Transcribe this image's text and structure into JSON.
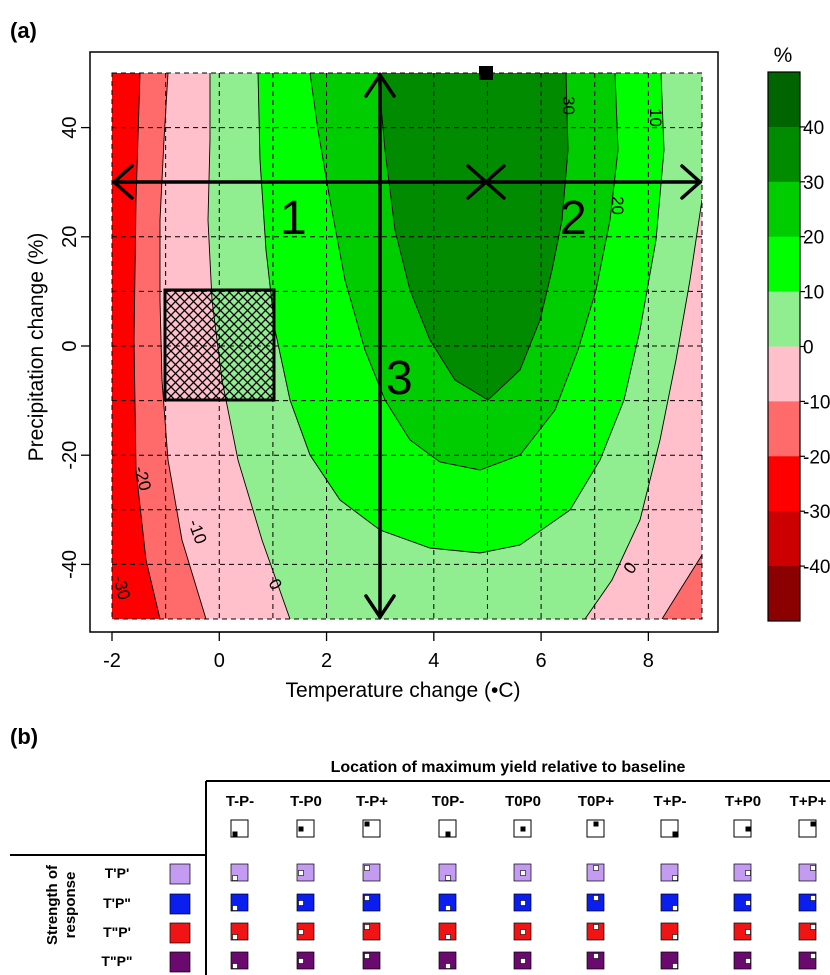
{
  "panel_a": {
    "label": "(a)",
    "xlabel": "Temperature change (•C)",
    "ylabel": "Precipitation change (%)",
    "x_ticks": [
      "-2",
      "0",
      "2",
      "4",
      "6",
      "8"
    ],
    "y_ticks": [
      "-40",
      "-20",
      "0",
      "20",
      "40"
    ],
    "contour_labels": [
      "30",
      "10",
      "20",
      "-20",
      "-10",
      "0",
      "0",
      "-30"
    ],
    "arrow_labels": [
      "1",
      "2",
      "3"
    ],
    "legend": {
      "title": "%",
      "labels": [
        "40",
        "30",
        "20",
        "10",
        "0",
        "-10",
        "-20",
        "-30",
        "-40"
      ],
      "colors": [
        "#006400",
        "#008b00",
        "#00cd00",
        "#00ff00",
        "#90ee90",
        "#ffc0cb",
        "#ff6a6a",
        "#ff0000",
        "#cd0000",
        "#8b0000"
      ]
    }
  },
  "chart_data": {
    "type": "heatmap",
    "title": "",
    "xlabel": "Temperature change (•C)",
    "ylabel": "Precipitation change (%)",
    "xlim": [
      -2,
      9
    ],
    "ylim": [
      -50,
      50
    ],
    "grid": true,
    "legend_placement": "right",
    "colorbar_levels": [
      -40,
      -30,
      -20,
      -10,
      0,
      10,
      20,
      30,
      40
    ],
    "maximum_yield_point": {
      "x": 5,
      "y": 50
    },
    "baseline_box": {
      "x": [
        -1,
        1
      ],
      "y": [
        -10,
        10
      ]
    },
    "arrows": [
      {
        "label": "1",
        "from": [
          -2,
          30
        ],
        "to": [
          5,
          30
        ]
      },
      {
        "label": "2",
        "from": [
          5,
          30
        ],
        "to": [
          9,
          30
        ]
      },
      {
        "label": "3",
        "from": [
          3,
          -50
        ],
        "to": [
          3,
          50
        ]
      }
    ]
  },
  "panel_b": {
    "label": "(b)",
    "header": "Location of maximum yield relative to baseline",
    "columns": [
      "T-P-",
      "T-P0",
      "T-P+",
      "T0P-",
      "T0P0",
      "T0P+",
      "T+P-",
      "T+P0",
      "T+P+"
    ],
    "row_header": [
      "Strength of",
      "response"
    ],
    "rows": [
      {
        "label": "T'P'",
        "color": "#c39bf0"
      },
      {
        "label": "T'P\"",
        "color": "#0a1ef0"
      },
      {
        "label": "T\"P'",
        "color": "#f01414"
      },
      {
        "label": "T\"P\"",
        "color": "#6a0a6e"
      }
    ]
  }
}
